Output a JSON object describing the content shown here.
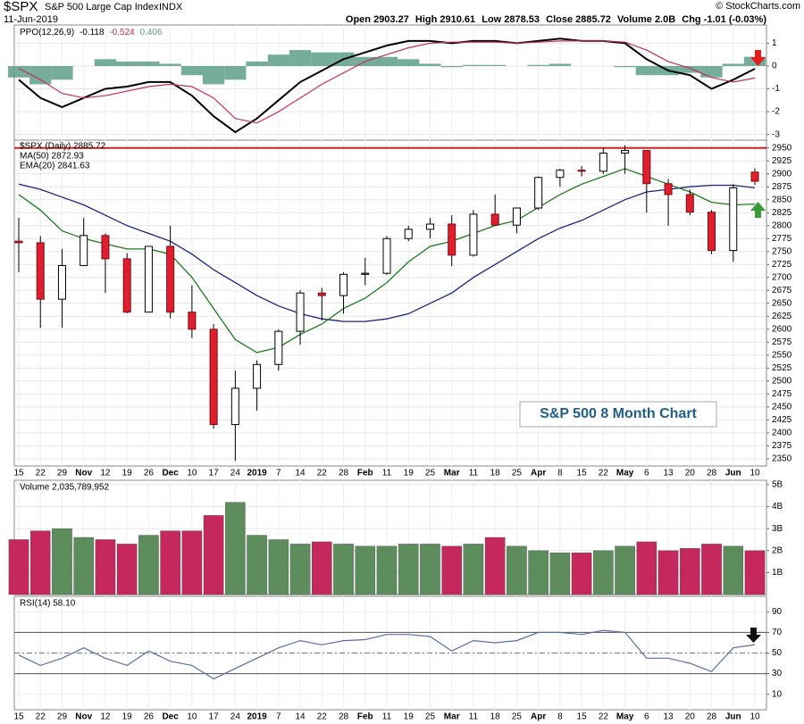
{
  "header": {
    "symbol": "$SPX",
    "name": "S&P 500 Large Cap Index",
    "exchange": "INDX",
    "date": "11-Jun-2019",
    "stats": [
      "Open 2903.27",
      "High 2910.61",
      "Low 2878.53",
      "Close 2885.72",
      "Volume 2.0B",
      "Chg -1.01 (-0.03%)"
    ],
    "credit": "© StockCharts.com"
  },
  "chart_data": [
    {
      "type": "ppo",
      "title": "PPO(12,26,9)",
      "series": [
        {
          "name": "-0.118",
          "color": "#000000",
          "values": [
            -0.6,
            -1.4,
            -1.8,
            -1.4,
            -1.0,
            -0.9,
            -0.7,
            -0.7,
            -1.3,
            -2.2,
            -2.9,
            -2.3,
            -1.5,
            -0.7,
            -0.2,
            0.3,
            0.6,
            0.9,
            1.1,
            1.1,
            1.0,
            1.1,
            1.1,
            1.0,
            1.1,
            1.2,
            1.1,
            1.1,
            1.0,
            0.3,
            -0.2,
            -0.4,
            -1.0,
            -0.6,
            -0.118
          ]
        },
        {
          "name": "-0.524",
          "color": "#c0305a",
          "values": [
            -0.1,
            -0.6,
            -1.2,
            -1.4,
            -1.3,
            -1.1,
            -0.9,
            -0.8,
            -0.9,
            -1.4,
            -2.3,
            -2.5,
            -2.0,
            -1.4,
            -0.8,
            -0.3,
            0.2,
            0.5,
            0.8,
            1.0,
            1.05,
            1.05,
            1.05,
            1.0,
            1.05,
            1.1,
            1.1,
            1.1,
            1.05,
            0.7,
            0.2,
            -0.1,
            -0.5,
            -0.7,
            -0.524
          ]
        },
        {
          "name": "0.406",
          "color": "#5e9e88",
          "kind": "histogram",
          "values": [
            -0.5,
            -0.8,
            -0.6,
            0,
            0.3,
            0.2,
            0.2,
            0.1,
            -0.4,
            -0.8,
            -0.6,
            0.2,
            0.5,
            0.7,
            0.6,
            0.6,
            0.4,
            0.4,
            0.3,
            0.1,
            -0.05,
            0.05,
            0.05,
            0,
            0.05,
            0.1,
            0,
            0,
            -0.05,
            -0.4,
            -0.4,
            -0.3,
            -0.5,
            0.1,
            0.406
          ]
        }
      ],
      "ylim": [
        -3.25,
        1.8
      ],
      "yticks": [
        1,
        0,
        -1,
        -2,
        -3
      ]
    },
    {
      "type": "candlestick",
      "title": "$SPX (Daily) 2885.72",
      "categories": [
        "15",
        "22",
        "29",
        "Nov",
        "12",
        "19",
        "26",
        "Dec",
        "10",
        "17",
        "24",
        "2019",
        "7",
        "14",
        "22",
        "28",
        "Feb",
        "11",
        "19",
        "25",
        "Mar",
        "11",
        "18",
        "25",
        "Apr",
        "8",
        "15",
        "22",
        "May",
        "6",
        "13",
        "20",
        "28",
        "Jun",
        "10"
      ],
      "open": [
        2770,
        2767,
        2658,
        2723,
        2781,
        2736,
        2633,
        2760,
        2633,
        2600,
        2416,
        2486,
        2532,
        2596,
        2670,
        2665,
        2706,
        2708,
        2775,
        2793,
        2803,
        2743,
        2822,
        2801,
        2834,
        2893,
        2907,
        2905,
        2940,
        2945,
        2881,
        2860,
        2826,
        2752,
        2903.27
      ],
      "high": [
        2815,
        2780,
        2755,
        2815,
        2785,
        2747,
        2760,
        2800,
        2685,
        2610,
        2520,
        2540,
        2600,
        2675,
        2680,
        2710,
        2738,
        2780,
        2800,
        2815,
        2820,
        2830,
        2860,
        2835,
        2895,
        2910,
        2915,
        2950,
        2955,
        2940,
        2890,
        2870,
        2830,
        2880,
        2910.61
      ],
      "low": [
        2710,
        2603,
        2603,
        2722,
        2670,
        2631,
        2633,
        2621,
        2583,
        2408,
        2346,
        2443,
        2520,
        2570,
        2617,
        2630,
        2685,
        2705,
        2770,
        2775,
        2722,
        2740,
        2800,
        2785,
        2830,
        2875,
        2895,
        2900,
        2900,
        2825,
        2800,
        2820,
        2745,
        2730,
        2878.53
      ],
      "close": [
        2767,
        2658,
        2723,
        2781,
        2736,
        2633,
        2760,
        2633,
        2600,
        2416,
        2486,
        2532,
        2596,
        2670,
        2665,
        2706,
        2708,
        2775,
        2793,
        2803,
        2743,
        2822,
        2801,
        2834,
        2893,
        2907,
        2905,
        2940,
        2945,
        2881,
        2860,
        2826,
        2752,
        2873,
        2885.72
      ],
      "up_color": "#ffffff",
      "down_color": "#e01e2e",
      "series": [
        {
          "name": "MA(50) 2872.93",
          "color": "#1a237e",
          "values": [
            2880,
            2870,
            2855,
            2840,
            2820,
            2800,
            2785,
            2770,
            2745,
            2715,
            2690,
            2665,
            2645,
            2630,
            2620,
            2615,
            2615,
            2620,
            2630,
            2650,
            2670,
            2700,
            2725,
            2750,
            2775,
            2795,
            2810,
            2830,
            2850,
            2865,
            2870,
            2875,
            2878,
            2878,
            2872.93
          ]
        },
        {
          "name": "EMA(20) 2841.63",
          "color": "#1b7a1b",
          "values": [
            2860,
            2830,
            2790,
            2775,
            2765,
            2755,
            2755,
            2745,
            2700,
            2640,
            2580,
            2555,
            2565,
            2590,
            2610,
            2640,
            2660,
            2690,
            2730,
            2760,
            2770,
            2785,
            2800,
            2810,
            2835,
            2860,
            2880,
            2895,
            2910,
            2895,
            2880,
            2865,
            2845,
            2840,
            2841.63
          ]
        }
      ],
      "reference_line": {
        "value": 2950,
        "color": "#e01e1e"
      },
      "annotation": "S&P 500 8 Month Chart",
      "ylim": [
        2336,
        2965
      ],
      "yticks": [
        2350,
        2375,
        2400,
        2425,
        2450,
        2475,
        2500,
        2525,
        2550,
        2575,
        2600,
        2625,
        2650,
        2675,
        2700,
        2725,
        2750,
        2775,
        2800,
        2825,
        2850,
        2875,
        2900,
        2925,
        2950
      ]
    },
    {
      "type": "bar",
      "title": "Volume 2,035,789,952",
      "values": [
        2.5,
        2.9,
        3.0,
        2.6,
        2.5,
        2.3,
        2.7,
        2.9,
        2.9,
        3.6,
        4.2,
        2.7,
        2.5,
        2.3,
        2.4,
        2.3,
        2.2,
        2.2,
        2.3,
        2.3,
        2.2,
        2.3,
        2.6,
        2.2,
        2.0,
        1.9,
        1.9,
        2.0,
        2.2,
        2.4,
        2.0,
        2.1,
        2.3,
        2.2,
        2.0
      ],
      "colors": {
        "up": "#5d8d5c",
        "down": "#c4285c"
      },
      "ylim": [
        0,
        5.2
      ],
      "yticks": [
        {
          "value": 1,
          "label": "1B"
        },
        {
          "value": 2,
          "label": "2B"
        },
        {
          "value": 3,
          "label": "3B"
        },
        {
          "value": 4,
          "label": "4B"
        },
        {
          "value": 5,
          "label": "5B"
        }
      ]
    },
    {
      "type": "line",
      "title": "RSI(14) 58.10",
      "color": "#5a6fa0",
      "values": [
        48,
        38,
        45,
        55,
        45,
        38,
        52,
        42,
        38,
        25,
        35,
        45,
        55,
        62,
        58,
        62,
        63,
        68,
        68,
        66,
        52,
        62,
        60,
        62,
        70,
        70,
        68,
        72,
        70,
        45,
        45,
        40,
        32,
        55,
        58.1
      ],
      "ylim": [
        -5,
        105
      ],
      "yticks": [
        10,
        30,
        50,
        70,
        90
      ],
      "bands": [
        30,
        70
      ],
      "midline": 50
    }
  ]
}
